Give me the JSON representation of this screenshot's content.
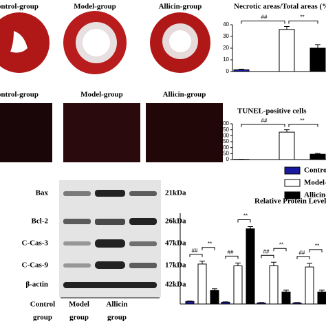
{
  "photos": {
    "heart_labels": [
      "Control-group",
      "Model-group",
      "Allicin-group"
    ],
    "tunel_labels": [
      "Control-group",
      "Model-group",
      "Allicin-group"
    ]
  },
  "blot": {
    "proteins": [
      "Bax",
      "Bcl-2",
      "C-Cas-3",
      "C-Cas-9",
      "β-actin"
    ],
    "sizes": [
      "21kDa",
      "26kDa",
      "47kDa",
      "17kDa",
      "42kDa"
    ],
    "groups": [
      [
        "Control",
        "group"
      ],
      [
        "Model",
        "group"
      ],
      [
        "Allicin",
        "group"
      ]
    ]
  },
  "chart_data": [
    {
      "type": "bar",
      "title": "Necrotic areas/Total areas (%)",
      "categories": [
        null,
        null,
        null
      ],
      "values": [
        1.5,
        36,
        20
      ],
      "errors": [
        0.5,
        2.5,
        3
      ],
      "colors": [
        "#1a1aa0",
        "#ffffff",
        "#000000"
      ],
      "ylim": [
        0,
        40
      ],
      "yticks": [
        0,
        10,
        20,
        30,
        40
      ],
      "annotations": [
        "##",
        "**"
      ]
    },
    {
      "type": "bar",
      "title": "TUNEL-positive cells",
      "categories": [
        null,
        null,
        null
      ],
      "values": [
        2,
        230,
        45
      ],
      "errors": [
        1,
        20,
        6
      ],
      "colors": [
        "#1a1aa0",
        "#ffffff",
        "#000000"
      ],
      "ylim": [
        0,
        300
      ],
      "yticks": [
        0,
        50,
        100,
        150,
        200,
        250,
        300
      ],
      "annotations": [
        "##",
        "**"
      ]
    },
    {
      "type": "grouped-bar",
      "title": "Relative Protein Levels",
      "categories": [
        null,
        null,
        null,
        null
      ],
      "series": [
        {
          "name": "Control-group",
          "color": "#1a1aa0",
          "values": [
            0.07,
            0.05,
            0.03,
            0.03
          ],
          "errors": [
            0.01,
            0.01,
            0.01,
            0.01
          ]
        },
        {
          "name": "Model-group",
          "color": "#ffffff",
          "values": [
            1.1,
            1.05,
            1.05,
            1.02
          ],
          "errors": [
            0.08,
            0.08,
            0.1,
            0.1
          ]
        },
        {
          "name": "Allicin-group",
          "color": "#000000",
          "values": [
            0.37,
            2.07,
            0.33,
            0.33
          ],
          "errors": [
            0.05,
            0.06,
            0.05,
            0.05
          ]
        }
      ],
      "ylim": [
        0,
        2.5
      ],
      "annotations": [
        "##",
        "**",
        "##",
        "**",
        "##",
        "**",
        "##",
        "**"
      ]
    }
  ]
}
